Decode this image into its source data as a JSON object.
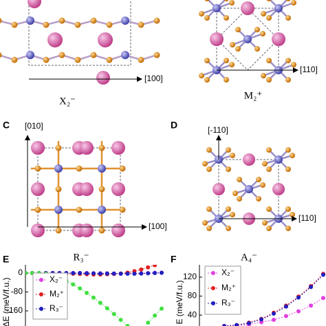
{
  "structures": [
    {
      "axis": "[100]",
      "label": "X₂⁻"
    },
    {
      "axis": "[110]",
      "label": "M₂⁺"
    },
    {
      "letter": "C",
      "axis_v": "[010]",
      "axis": "[100]",
      "label": "R₃⁻"
    },
    {
      "letter": "D",
      "axis_v": "[-110]",
      "axis": "[110]",
      "label": "A₄⁻"
    }
  ],
  "chart_data": [
    {
      "type": "line",
      "panel": "E",
      "y_label": "ΔE (meV/f.u.)",
      "x": [
        0,
        0.05,
        0.1,
        0.15,
        0.2,
        0.25,
        0.3,
        0.35,
        0.4,
        0.45,
        0.5,
        0.55,
        0.6,
        0.65,
        0.7,
        0.75,
        0.8,
        0.85,
        0.9,
        0.95,
        1.0
      ],
      "xlim": [
        0,
        1
      ],
      "ylim": [
        -224,
        35
      ],
      "yticks": [
        0,
        -80,
        -160
      ],
      "series": [
        {
          "name": "X₂⁻",
          "color": "#e040e0",
          "values": [
            0,
            0,
            0,
            0,
            0,
            0,
            0,
            0,
            0,
            0,
            -1,
            -1,
            -1,
            -2,
            -2,
            -2,
            -2,
            -1,
            0,
            1,
            2
          ]
        },
        {
          "name": "M₂⁺",
          "color": "#e02020",
          "values": [
            0,
            0,
            0,
            0,
            0,
            -1,
            -2,
            -3,
            -4,
            -5,
            -6,
            -6,
            -5,
            -4,
            -2,
            2,
            8,
            15,
            24,
            33,
            null
          ]
        },
        {
          "name": "R₃⁻",
          "color": "#2020c0",
          "values": [
            0,
            0,
            0,
            0,
            0,
            0,
            0,
            0,
            0,
            -1,
            -1,
            -2,
            -2,
            -2,
            -3,
            -3,
            -3,
            -2,
            -1,
            0,
            1
          ]
        },
        {
          "color": "#40e040",
          "values": [
            0,
            0,
            0,
            -3,
            -10,
            -20,
            -33,
            -48,
            -65,
            -84,
            -104,
            -126,
            -149,
            -173,
            -198,
            -224,
            null,
            null,
            -210,
            -180,
            -150
          ]
        }
      ]
    },
    {
      "type": "line",
      "panel": "F",
      "y_label": "E (meV/f.u.)",
      "x": [
        0.2,
        0.3,
        0.4,
        0.5,
        0.6,
        0.7,
        0.8,
        0.9,
        1.0
      ],
      "xlim": [
        0,
        1
      ],
      "ylim": [
        17,
        146
      ],
      "yticks": [
        120,
        80,
        40
      ],
      "series": [
        {
          "name": "X₂⁻",
          "color": "#e040e0",
          "values": [
            17,
            18,
            20,
            25,
            30,
            38,
            48,
            60,
            76
          ]
        },
        {
          "name": "M₂⁺",
          "color": "#e02020",
          "values": [
            17,
            19,
            24,
            32,
            45,
            60,
            79,
            101,
            127
          ]
        },
        {
          "name": "R₃⁻",
          "color": "#2020c0",
          "values": [
            17,
            19,
            23,
            31,
            43,
            58,
            77,
            99,
            125
          ]
        }
      ]
    }
  ]
}
